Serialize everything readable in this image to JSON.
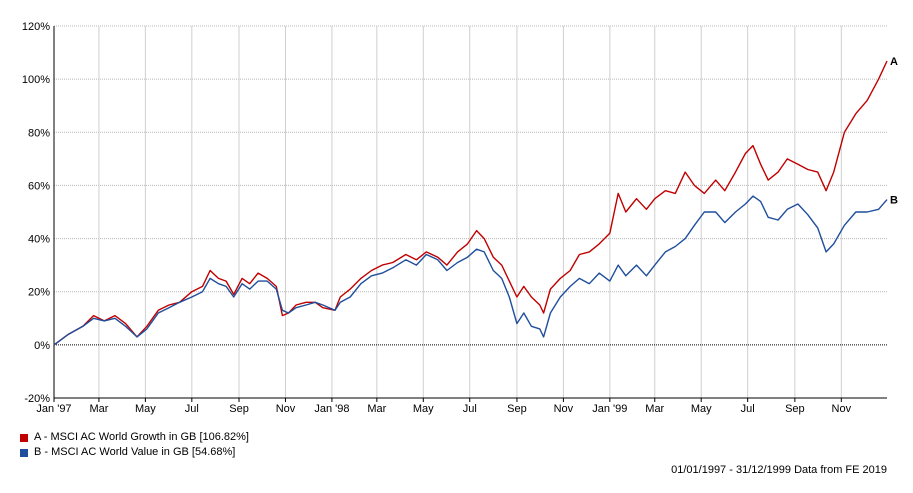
{
  "chart_data": {
    "type": "line",
    "title": "",
    "xlabel": "",
    "ylabel": "",
    "ylim": [
      -20,
      120
    ],
    "y_ticks": [
      -20,
      0,
      20,
      40,
      60,
      80,
      100,
      120
    ],
    "y_tick_labels": [
      "-20%",
      "0%",
      "20%",
      "40%",
      "60%",
      "80%",
      "100%",
      "120%"
    ],
    "x_range": [
      "1997-01-01",
      "1999-12-31"
    ],
    "x_ticks": [
      {
        "date": "1997-01-01",
        "label": "Jan '97"
      },
      {
        "date": "1997-03-01",
        "label": "Mar"
      },
      {
        "date": "1997-05-01",
        "label": "May"
      },
      {
        "date": "1997-07-01",
        "label": "Jul"
      },
      {
        "date": "1997-09-01",
        "label": "Sep"
      },
      {
        "date": "1997-11-01",
        "label": "Nov"
      },
      {
        "date": "1998-01-01",
        "label": "Jan '98"
      },
      {
        "date": "1998-03-01",
        "label": "Mar"
      },
      {
        "date": "1998-05-01",
        "label": "May"
      },
      {
        "date": "1998-07-01",
        "label": "Jul"
      },
      {
        "date": "1998-09-01",
        "label": "Sep"
      },
      {
        "date": "1998-11-01",
        "label": "Nov"
      },
      {
        "date": "1999-01-01",
        "label": "Jan '99"
      },
      {
        "date": "1999-03-01",
        "label": "Mar"
      },
      {
        "date": "1999-05-01",
        "label": "May"
      },
      {
        "date": "1999-07-01",
        "label": "Jul"
      },
      {
        "date": "1999-09-01",
        "label": "Sep"
      },
      {
        "date": "1999-11-01",
        "label": "Nov"
      }
    ],
    "grid": true,
    "zero_line": "dotted",
    "legend_position": "bottom-left",
    "series": [
      {
        "name": "A - MSCI AC World Growth in GB [106.82%]",
        "end_label": "A",
        "color": "#c00000",
        "points": [
          [
            "1997-01-01",
            0
          ],
          [
            "1997-01-20",
            4
          ],
          [
            "1997-02-08",
            7
          ],
          [
            "1997-02-22",
            11
          ],
          [
            "1997-03-08",
            9
          ],
          [
            "1997-03-22",
            11
          ],
          [
            "1997-04-05",
            8
          ],
          [
            "1997-04-20",
            3
          ],
          [
            "1997-05-03",
            7
          ],
          [
            "1997-05-18",
            13
          ],
          [
            "1997-06-01",
            15
          ],
          [
            "1997-06-15",
            16
          ],
          [
            "1997-07-01",
            20
          ],
          [
            "1997-07-15",
            22
          ],
          [
            "1997-07-25",
            28
          ],
          [
            "1997-08-05",
            25
          ],
          [
            "1997-08-15",
            24
          ],
          [
            "1997-08-25",
            19
          ],
          [
            "1997-09-05",
            25
          ],
          [
            "1997-09-15",
            23
          ],
          [
            "1997-09-26",
            27
          ],
          [
            "1997-10-08",
            25
          ],
          [
            "1997-10-20",
            22
          ],
          [
            "1997-10-28",
            11
          ],
          [
            "1997-11-05",
            12
          ],
          [
            "1997-11-15",
            15
          ],
          [
            "1997-11-28",
            16
          ],
          [
            "1997-12-10",
            16
          ],
          [
            "1997-12-20",
            14
          ],
          [
            "1998-01-05",
            13
          ],
          [
            "1998-01-12",
            18
          ],
          [
            "1998-01-25",
            21
          ],
          [
            "1998-02-08",
            25
          ],
          [
            "1998-02-22",
            28
          ],
          [
            "1998-03-08",
            30
          ],
          [
            "1998-03-22",
            31
          ],
          [
            "1998-04-08",
            34
          ],
          [
            "1998-04-22",
            32
          ],
          [
            "1998-05-05",
            35
          ],
          [
            "1998-05-20",
            33
          ],
          [
            "1998-06-01",
            30
          ],
          [
            "1998-06-15",
            35
          ],
          [
            "1998-06-28",
            38
          ],
          [
            "1998-07-10",
            43
          ],
          [
            "1998-07-20",
            40
          ],
          [
            "1998-08-01",
            33
          ],
          [
            "1998-08-12",
            30
          ],
          [
            "1998-08-22",
            24
          ],
          [
            "1998-09-01",
            18
          ],
          [
            "1998-09-10",
            22
          ],
          [
            "1998-09-20",
            18
          ],
          [
            "1998-10-01",
            15
          ],
          [
            "1998-10-06",
            12
          ],
          [
            "1998-10-15",
            21
          ],
          [
            "1998-10-28",
            25
          ],
          [
            "1998-11-10",
            28
          ],
          [
            "1998-11-22",
            34
          ],
          [
            "1998-12-05",
            35
          ],
          [
            "1998-12-18",
            38
          ],
          [
            "1999-01-01",
            42
          ],
          [
            "1999-01-12",
            57
          ],
          [
            "1999-01-22",
            50
          ],
          [
            "1999-02-05",
            55
          ],
          [
            "1999-02-18",
            51
          ],
          [
            "1999-03-01",
            55
          ],
          [
            "1999-03-15",
            58
          ],
          [
            "1999-03-28",
            57
          ],
          [
            "1999-04-10",
            65
          ],
          [
            "1999-04-22",
            60
          ],
          [
            "1999-05-05",
            57
          ],
          [
            "1999-05-20",
            62
          ],
          [
            "1999-06-01",
            58
          ],
          [
            "1999-06-15",
            65
          ],
          [
            "1999-06-28",
            72
          ],
          [
            "1999-07-08",
            75
          ],
          [
            "1999-07-18",
            68
          ],
          [
            "1999-07-28",
            62
          ],
          [
            "1999-08-10",
            65
          ],
          [
            "1999-08-22",
            70
          ],
          [
            "1999-09-05",
            68
          ],
          [
            "1999-09-18",
            66
          ],
          [
            "1999-10-01",
            65
          ],
          [
            "1999-10-12",
            58
          ],
          [
            "1999-10-22",
            65
          ],
          [
            "1999-11-05",
            80
          ],
          [
            "1999-11-20",
            87
          ],
          [
            "1999-12-05",
            92
          ],
          [
            "1999-12-20",
            100
          ],
          [
            "1999-12-31",
            106.82
          ]
        ]
      },
      {
        "name": "B - MSCI AC World Value in GB [54.68%]",
        "end_label": "B",
        "color": "#1f4e9c",
        "points": [
          [
            "1997-01-01",
            0
          ],
          [
            "1997-01-20",
            4
          ],
          [
            "1997-02-08",
            7
          ],
          [
            "1997-02-22",
            10
          ],
          [
            "1997-03-08",
            9
          ],
          [
            "1997-03-22",
            10
          ],
          [
            "1997-04-05",
            7
          ],
          [
            "1997-04-20",
            3
          ],
          [
            "1997-05-03",
            6
          ],
          [
            "1997-05-18",
            12
          ],
          [
            "1997-06-01",
            14
          ],
          [
            "1997-06-15",
            16
          ],
          [
            "1997-07-01",
            18
          ],
          [
            "1997-07-15",
            20
          ],
          [
            "1997-07-25",
            25
          ],
          [
            "1997-08-05",
            23
          ],
          [
            "1997-08-15",
            22
          ],
          [
            "1997-08-25",
            18
          ],
          [
            "1997-09-05",
            23
          ],
          [
            "1997-09-15",
            21
          ],
          [
            "1997-09-26",
            24
          ],
          [
            "1997-10-08",
            24
          ],
          [
            "1997-10-20",
            21
          ],
          [
            "1997-10-28",
            13
          ],
          [
            "1997-11-05",
            12
          ],
          [
            "1997-11-15",
            14
          ],
          [
            "1997-11-28",
            15
          ],
          [
            "1997-12-10",
            16
          ],
          [
            "1997-12-20",
            15
          ],
          [
            "1998-01-05",
            13
          ],
          [
            "1998-01-12",
            16
          ],
          [
            "1998-01-25",
            18
          ],
          [
            "1998-02-08",
            23
          ],
          [
            "1998-02-22",
            26
          ],
          [
            "1998-03-08",
            27
          ],
          [
            "1998-03-22",
            29
          ],
          [
            "1998-04-08",
            32
          ],
          [
            "1998-04-22",
            30
          ],
          [
            "1998-05-05",
            34
          ],
          [
            "1998-05-20",
            32
          ],
          [
            "1998-06-01",
            28
          ],
          [
            "1998-06-15",
            31
          ],
          [
            "1998-06-28",
            33
          ],
          [
            "1998-07-10",
            36
          ],
          [
            "1998-07-20",
            35
          ],
          [
            "1998-08-01",
            28
          ],
          [
            "1998-08-12",
            25
          ],
          [
            "1998-08-22",
            18
          ],
          [
            "1998-09-01",
            8
          ],
          [
            "1998-09-10",
            12
          ],
          [
            "1998-09-20",
            7
          ],
          [
            "1998-10-01",
            6
          ],
          [
            "1998-10-06",
            3
          ],
          [
            "1998-10-15",
            12
          ],
          [
            "1998-10-28",
            18
          ],
          [
            "1998-11-10",
            22
          ],
          [
            "1998-11-22",
            25
          ],
          [
            "1998-12-05",
            23
          ],
          [
            "1998-12-18",
            27
          ],
          [
            "1999-01-01",
            24
          ],
          [
            "1999-01-12",
            30
          ],
          [
            "1999-01-22",
            26
          ],
          [
            "1999-02-05",
            30
          ],
          [
            "1999-02-18",
            26
          ],
          [
            "1999-03-01",
            30
          ],
          [
            "1999-03-15",
            35
          ],
          [
            "1999-03-28",
            37
          ],
          [
            "1999-04-10",
            40
          ],
          [
            "1999-04-22",
            45
          ],
          [
            "1999-05-05",
            50
          ],
          [
            "1999-05-20",
            50
          ],
          [
            "1999-06-01",
            46
          ],
          [
            "1999-06-15",
            50
          ],
          [
            "1999-06-28",
            53
          ],
          [
            "1999-07-08",
            56
          ],
          [
            "1999-07-18",
            54
          ],
          [
            "1999-07-28",
            48
          ],
          [
            "1999-08-10",
            47
          ],
          [
            "1999-08-22",
            51
          ],
          [
            "1999-09-05",
            53
          ],
          [
            "1999-09-18",
            49
          ],
          [
            "1999-10-01",
            44
          ],
          [
            "1999-10-12",
            35
          ],
          [
            "1999-10-22",
            38
          ],
          [
            "1999-11-05",
            45
          ],
          [
            "1999-11-20",
            50
          ],
          [
            "1999-12-05",
            50
          ],
          [
            "1999-12-20",
            51
          ],
          [
            "1999-12-31",
            54.68
          ]
        ]
      }
    ]
  },
  "footer": {
    "source_text": "01/01/1997 - 31/12/1999 Data from FE 2019"
  }
}
